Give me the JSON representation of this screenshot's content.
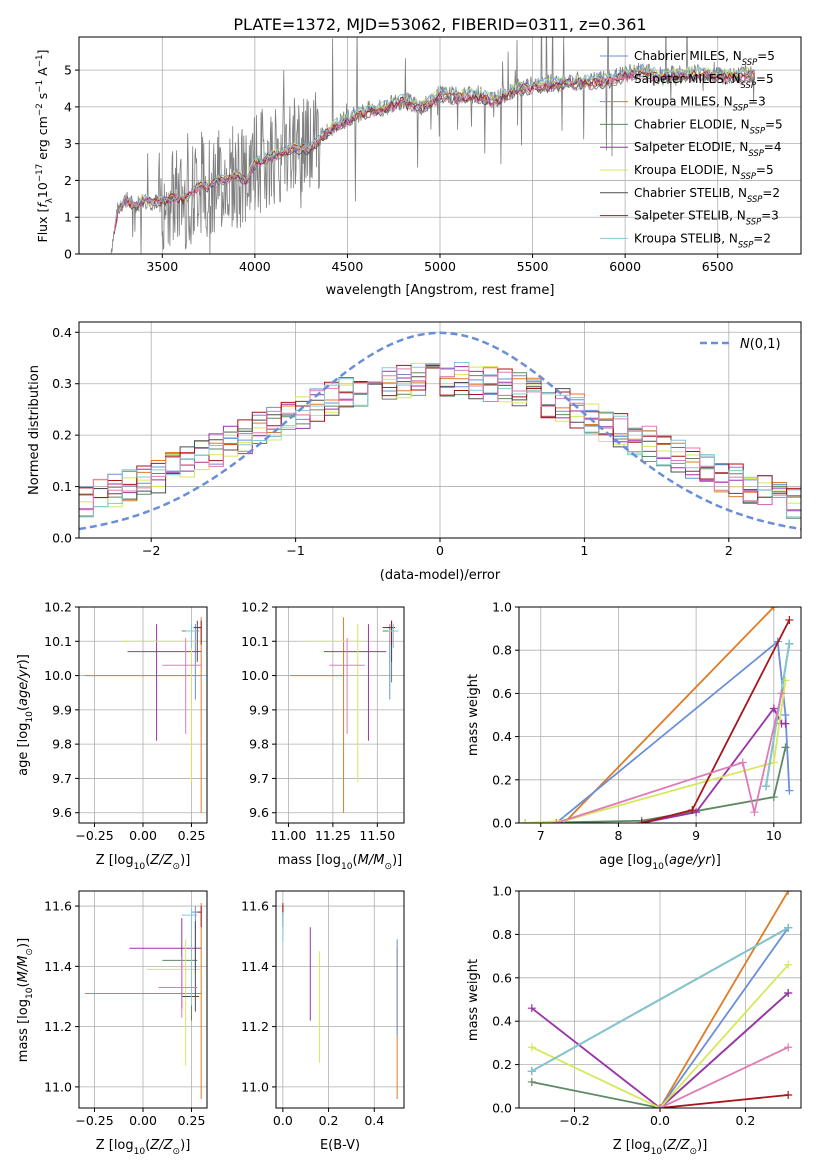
{
  "figure_title": "PLATE=1372, MJD=53062, FIBERID=0311, z=0.361",
  "palette": [
    "#7f7f7f",
    "#e07b26",
    "#6a8fd9",
    "#5d8a63",
    "#9b32a8",
    "#d6e85a",
    "#4d4d4d",
    "#a8161b",
    "#82c9d4",
    "#e07bb5"
  ],
  "legend_spectrum": [
    "Chabrier MILES, N_SSP=5",
    "Salpeter MILES, N_SSP=5",
    "Kroupa MILES, N_SSP=3",
    "Chabrier ELODIE, N_SSP=5",
    "Salpeter ELODIE, N_SSP=4",
    "Kroupa ELODIE, N_SSP=5",
    "Chabrier STELIB, N_SSP=2",
    "Salpeter STELIB, N_SSP=3",
    "Kroupa STELIB, N_SSP=2"
  ],
  "chart_data": [
    {
      "type": "line",
      "xlabel": "wavelength [Angstrom, rest frame]",
      "ylabel": "Flux [f_λ 10^-17 erg cm^-2 s^-1 A^-1]",
      "xlim": [
        3050,
        6950
      ],
      "ylim": [
        0,
        5.9
      ],
      "xticks": [
        3500,
        4000,
        4500,
        5000,
        5500,
        6000,
        6500
      ],
      "yticks": [
        0,
        1,
        2,
        3,
        4,
        5
      ],
      "data_range": [
        3220,
        6700
      ],
      "observed_flux_rough": [
        [
          3220,
          0.0
        ],
        [
          3260,
          1.2
        ],
        [
          3300,
          1.5
        ],
        [
          3350,
          1.3
        ],
        [
          3400,
          1.5
        ],
        [
          3450,
          1.4
        ],
        [
          3500,
          1.45
        ],
        [
          3550,
          1.55
        ],
        [
          3600,
          1.5
        ],
        [
          3650,
          1.6
        ],
        [
          3700,
          1.9
        ],
        [
          3750,
          1.85
        ],
        [
          3800,
          2.0
        ],
        [
          3850,
          2.05
        ],
        [
          3900,
          2.2
        ],
        [
          3950,
          2.0
        ],
        [
          4000,
          2.5
        ],
        [
          4100,
          2.7
        ],
        [
          4200,
          2.9
        ],
        [
          4300,
          2.9
        ],
        [
          4400,
          3.4
        ],
        [
          4500,
          3.7
        ],
        [
          4600,
          3.9
        ],
        [
          4700,
          4.0
        ],
        [
          4800,
          4.2
        ],
        [
          4900,
          4.0
        ],
        [
          5000,
          4.35
        ],
        [
          5100,
          4.3
        ],
        [
          5200,
          4.35
        ],
        [
          5300,
          4.2
        ],
        [
          5400,
          4.5
        ],
        [
          5500,
          4.6
        ],
        [
          5600,
          4.65
        ],
        [
          5700,
          4.7
        ],
        [
          5800,
          4.7
        ],
        [
          5900,
          4.75
        ],
        [
          6000,
          4.9
        ],
        [
          6100,
          5.0
        ],
        [
          6200,
          4.85
        ],
        [
          6300,
          4.9
        ],
        [
          6400,
          4.95
        ],
        [
          6500,
          4.9
        ],
        [
          6600,
          4.85
        ],
        [
          6700,
          4.95
        ]
      ],
      "legend": "upper right"
    },
    {
      "type": "line",
      "xlabel": "(data-model)/error",
      "ylabel": "Normed distribution",
      "xlim": [
        -2.5,
        2.5
      ],
      "ylim": [
        0,
        0.42
      ],
      "xticks": [
        -2,
        -1,
        0,
        1,
        2
      ],
      "yticks": [
        0.0,
        0.1,
        0.2,
        0.3,
        0.4
      ],
      "bin_width": 0.1,
      "series": [
        {
          "name": "N(0,1)",
          "mu": 0,
          "sigma": 1
        }
      ]
    },
    {
      "type": "scatter",
      "xlabel": "Z [log10(Z/Z_sun)]",
      "ylabel": "age [log10(age/yr)]",
      "xlim": [
        -0.33,
        0.33
      ],
      "ylim": [
        9.57,
        10.2
      ],
      "xticks": [
        -0.25,
        0.0,
        0.25
      ],
      "yticks": [
        9.6,
        9.7,
        9.8,
        9.9,
        10.0,
        10.1,
        10.2
      ],
      "points": [
        {
          "c": 1,
          "x": 0.3,
          "y": 10.0,
          "xerr": [
            0.6,
            0.0
          ],
          "yerr": [
            0.4,
            0.17
          ]
        },
        {
          "c": 2,
          "x": 0.27,
          "y": 10.13,
          "xerr": [
            0.02,
            0.02
          ],
          "yerr": [
            0.2,
            0.02
          ]
        },
        {
          "c": 3,
          "x": 0.25,
          "y": 10.13,
          "xerr": [
            0.05,
            0.03
          ],
          "yerr": [
            0.15,
            0.02
          ]
        },
        {
          "c": 4,
          "x": 0.07,
          "y": 10.07,
          "xerr": [
            0.15,
            0.23
          ],
          "yerr": [
            0.26,
            0.08
          ]
        },
        {
          "c": 5,
          "x": 0.25,
          "y": 10.1,
          "xerr": [
            0.35,
            0.05
          ],
          "yerr": [
            0.41,
            0.05
          ]
        },
        {
          "c": 6,
          "x": 0.28,
          "y": 10.14,
          "xerr": [
            0.02,
            0.02
          ],
          "yerr": [
            0.1,
            0.02
          ]
        },
        {
          "c": 7,
          "x": 0.3,
          "y": 10.14,
          "xerr": [
            0.02,
            0.0
          ],
          "yerr": [
            0.05,
            0.02
          ]
        },
        {
          "c": 8,
          "x": 0.25,
          "y": 10.13,
          "xerr": [
            0.03,
            0.03
          ],
          "yerr": [
            0.05,
            0.02
          ]
        },
        {
          "c": 9,
          "x": 0.22,
          "y": 10.03,
          "xerr": [
            0.12,
            0.08
          ],
          "yerr": [
            0.2,
            0.08
          ]
        }
      ]
    },
    {
      "type": "scatter",
      "xlabel": "mass [log10(M/M_sun)]",
      "ylabel": "",
      "xlim": [
        10.93,
        11.65
      ],
      "ylim": [
        9.57,
        10.2
      ],
      "xticks": [
        11.0,
        11.25,
        11.5
      ],
      "yticks": [
        9.6,
        9.7,
        9.8,
        9.9,
        10.0,
        10.1,
        10.2
      ],
      "points": [
        {
          "c": 1,
          "x": 11.31,
          "y": 10.0,
          "xerr": [
            0.3,
            0.0
          ],
          "yerr": [
            0.4,
            0.17
          ]
        },
        {
          "c": 2,
          "x": 11.57,
          "y": 10.13,
          "xerr": [
            0.02,
            0.02
          ],
          "yerr": [
            0.2,
            0.02
          ]
        },
        {
          "c": 3,
          "x": 11.58,
          "y": 10.13,
          "xerr": [
            0.05,
            0.03
          ],
          "yerr": [
            0.15,
            0.02
          ]
        },
        {
          "c": 4,
          "x": 11.45,
          "y": 10.07,
          "xerr": [
            0.25,
            0.1
          ],
          "yerr": [
            0.26,
            0.08
          ]
        },
        {
          "c": 5,
          "x": 11.39,
          "y": 10.1,
          "xerr": [
            0.3,
            0.05
          ],
          "yerr": [
            0.41,
            0.05
          ]
        },
        {
          "c": 6,
          "x": 11.58,
          "y": 10.14,
          "xerr": [
            0.02,
            0.02
          ],
          "yerr": [
            0.1,
            0.02
          ]
        },
        {
          "c": 7,
          "x": 11.58,
          "y": 10.14,
          "xerr": [
            0.05,
            0.02
          ],
          "yerr": [
            0.05,
            0.02
          ]
        },
        {
          "c": 8,
          "x": 11.59,
          "y": 10.13,
          "xerr": [
            0.03,
            0.03
          ],
          "yerr": [
            0.05,
            0.02
          ]
        },
        {
          "c": 9,
          "x": 11.33,
          "y": 10.03,
          "xerr": [
            0.1,
            0.1
          ],
          "yerr": [
            0.2,
            0.08
          ]
        }
      ]
    },
    {
      "type": "line",
      "xlabel": "age [log10(age/yr)]",
      "ylabel": "mass weight",
      "xlim": [
        6.72,
        10.35
      ],
      "ylim": [
        0,
        1.0
      ],
      "xticks": [
        7,
        8,
        9,
        10
      ],
      "yticks": [
        0.0,
        0.2,
        0.4,
        0.6,
        0.8,
        1.0
      ],
      "series": [
        {
          "c": 1,
          "x": [
            7.3,
            10.0
          ],
          "y": [
            0.0,
            1.0
          ]
        },
        {
          "c": 2,
          "x": [
            7.2,
            10.05,
            10.15,
            10.2
          ],
          "y": [
            0.0,
            0.84,
            0.5,
            0.15
          ]
        },
        {
          "c": 3,
          "x": [
            6.8,
            8.3,
            10.0,
            10.15
          ],
          "y": [
            0.0,
            0.01,
            0.12,
            0.35
          ]
        },
        {
          "c": 4,
          "x": [
            8.3,
            9.0,
            10.0,
            10.1,
            10.15
          ],
          "y": [
            0.0,
            0.05,
            0.53,
            0.46,
            0.46
          ]
        },
        {
          "c": 5,
          "x": [
            6.8,
            7.3,
            10.0,
            10.15
          ],
          "y": [
            0.0,
            0.01,
            0.28,
            0.66
          ]
        },
        {
          "c": 6,
          "x": [
            9.9,
            10.2
          ],
          "y": [
            0.17,
            0.83
          ]
        },
        {
          "c": 7,
          "x": [
            8.3,
            8.95,
            10.2
          ],
          "y": [
            0.0,
            0.06,
            0.94
          ]
        },
        {
          "c": 8,
          "x": [
            9.9,
            10.2
          ],
          "y": [
            0.17,
            0.83
          ]
        },
        {
          "c": 9,
          "x": [
            7.2,
            9.6,
            9.75,
            10.1
          ],
          "y": [
            0.0,
            0.28,
            0.05,
            0.6
          ]
        }
      ]
    },
    {
      "type": "scatter",
      "xlabel": "Z [log10(Z/Z_sun)]",
      "ylabel": "mass [log10(M/M_sun)]",
      "xlim": [
        -0.33,
        0.33
      ],
      "ylim": [
        10.93,
        11.65
      ],
      "xticks": [
        -0.25,
        0.0,
        0.25
      ],
      "yticks": [
        11.0,
        11.2,
        11.4,
        11.6
      ],
      "points": [
        {
          "c": 1,
          "x": 0.3,
          "y": 11.31,
          "xerr": [
            0.6,
            0.0
          ],
          "yerr": [
            0.35,
            0.3
          ]
        },
        {
          "c": 2,
          "x": 0.27,
          "y": 11.58,
          "xerr": [
            0.02,
            0.02
          ],
          "yerr": [
            0.2,
            0.02
          ]
        },
        {
          "c": 3,
          "x": 0.25,
          "y": 11.42,
          "xerr": [
            0.15,
            0.03
          ],
          "yerr": [
            0.2,
            0.03
          ]
        },
        {
          "c": 4,
          "x": 0.2,
          "y": 11.46,
          "xerr": [
            0.27,
            0.1
          ],
          "yerr": [
            0.2,
            0.1
          ]
        },
        {
          "c": 5,
          "x": 0.22,
          "y": 11.39,
          "xerr": [
            0.2,
            0.08
          ],
          "yerr": [
            0.32,
            0.1
          ]
        },
        {
          "c": 6,
          "x": 0.27,
          "y": 11.3,
          "xerr": [
            0.07,
            0.02
          ],
          "yerr": [
            0.05,
            0.25
          ]
        },
        {
          "c": 7,
          "x": 0.3,
          "y": 11.58,
          "xerr": [
            0.02,
            0.0
          ],
          "yerr": [
            0.05,
            0.02
          ]
        },
        {
          "c": 8,
          "x": 0.25,
          "y": 11.57,
          "xerr": [
            0.05,
            0.03
          ],
          "yerr": [
            0.3,
            0.02
          ]
        },
        {
          "c": 9,
          "x": 0.2,
          "y": 11.33,
          "xerr": [
            0.12,
            0.08
          ],
          "yerr": [
            0.1,
            0.1
          ]
        }
      ]
    },
    {
      "type": "scatter",
      "xlabel": "E(B-V)",
      "ylabel": "",
      "xlim": [
        -0.03,
        0.53
      ],
      "ylim": [
        10.93,
        11.65
      ],
      "xticks": [
        0.0,
        0.2,
        0.4
      ],
      "yticks": [
        11.0,
        11.2,
        11.4,
        11.6
      ],
      "points": [
        {
          "c": 1,
          "x": 0.5,
          "y": 11.31,
          "xerr": [
            0.0,
            0.0
          ],
          "yerr": [
            0.35,
            0.15
          ]
        },
        {
          "c": 2,
          "x": 0.5,
          "y": 11.47,
          "xerr": [
            0.0,
            0.0
          ],
          "yerr": [
            0.3,
            0.02
          ]
        },
        {
          "c": 4,
          "x": 0.12,
          "y": 11.44,
          "xerr": [
            0.0,
            0.0
          ],
          "yerr": [
            0.22,
            0.09
          ]
        },
        {
          "c": 5,
          "x": 0.16,
          "y": 11.3,
          "xerr": [
            0.0,
            0.0
          ],
          "yerr": [
            0.22,
            0.15
          ]
        },
        {
          "c": 6,
          "x": 0.0,
          "y": 11.58,
          "xerr": [
            0.0,
            0.0
          ],
          "yerr": [
            0.05,
            0.02
          ]
        },
        {
          "c": 7,
          "x": 0.0,
          "y": 11.59,
          "xerr": [
            0.0,
            0.0
          ],
          "yerr": [
            0.02,
            0.02
          ]
        },
        {
          "c": 8,
          "x": 0.0,
          "y": 11.56,
          "xerr": [
            0.0,
            0.0
          ],
          "yerr": [
            0.08,
            0.02
          ]
        }
      ]
    },
    {
      "type": "line",
      "xlabel": "Z [log10(Z/Z_sun)]",
      "ylabel": "mass weight",
      "xlim": [
        -0.33,
        0.33
      ],
      "ylim": [
        0,
        1.0
      ],
      "xticks": [
        -0.2,
        0.0,
        0.2
      ],
      "yticks": [
        0.0,
        0.2,
        0.4,
        0.6,
        0.8,
        1.0
      ],
      "series": [
        {
          "c": 1,
          "x": [
            0.0,
            0.3
          ],
          "y": [
            0.0,
            1.0
          ]
        },
        {
          "c": 2,
          "x": [
            0.0,
            0.3
          ],
          "y": [
            0.0,
            0.83
          ]
        },
        {
          "c": 3,
          "x": [
            -0.3,
            0.0,
            0.3
          ],
          "y": [
            0.12,
            0.0,
            0.53
          ]
        },
        {
          "c": 4,
          "x": [
            -0.3,
            0.0,
            0.3
          ],
          "y": [
            0.46,
            0.0,
            0.53
          ]
        },
        {
          "c": 5,
          "x": [
            -0.3,
            0.0,
            0.3
          ],
          "y": [
            0.28,
            0.0,
            0.66
          ]
        },
        {
          "c": 6,
          "x": [
            -0.3,
            0.3
          ],
          "y": [
            0.17,
            0.83
          ]
        },
        {
          "c": 7,
          "x": [
            0.0,
            0.3
          ],
          "y": [
            0.0,
            0.06
          ]
        },
        {
          "c": 8,
          "x": [
            -0.3,
            0.3
          ],
          "y": [
            0.17,
            0.83
          ]
        },
        {
          "c": 9,
          "x": [
            0.0,
            0.3
          ],
          "y": [
            0.0,
            0.28
          ]
        }
      ]
    }
  ]
}
